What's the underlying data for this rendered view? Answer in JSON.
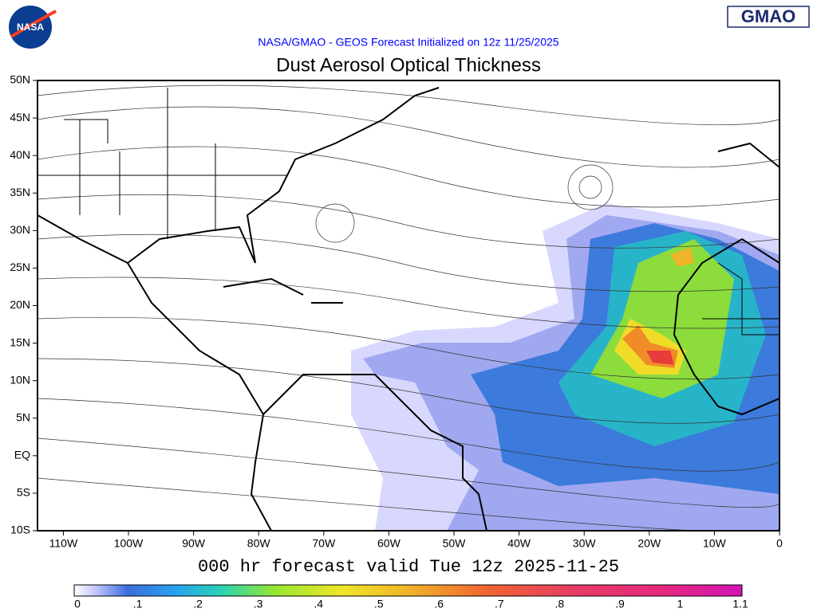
{
  "header": {
    "logo_left": "NASA",
    "logo_right": "GMAO",
    "subtitle": "NASA/GMAO - GEOS Forecast Initialized on 12z 11/25/2025",
    "title": "Dust Aerosol Optical Thickness"
  },
  "map": {
    "lat_labels": [
      "50N",
      "45N",
      "40N",
      "35N",
      "30N",
      "25N",
      "20N",
      "15N",
      "10N",
      "5N",
      "EQ",
      "5S",
      "10S"
    ],
    "lon_labels": [
      "110W",
      "100W",
      "90W",
      "80W",
      "70W",
      "60W",
      "50W",
      "40W",
      "30W",
      "20W",
      "10W",
      "0"
    ]
  },
  "footer": {
    "valid": "000 hr forecast valid Tue 12z 2025-11-25"
  },
  "colorbar": {
    "labels": [
      "0",
      ".1",
      ".2",
      ".3",
      ".4",
      ".5",
      ".6",
      ".7",
      ".8",
      ".9",
      "1",
      "1.1"
    ]
  }
}
